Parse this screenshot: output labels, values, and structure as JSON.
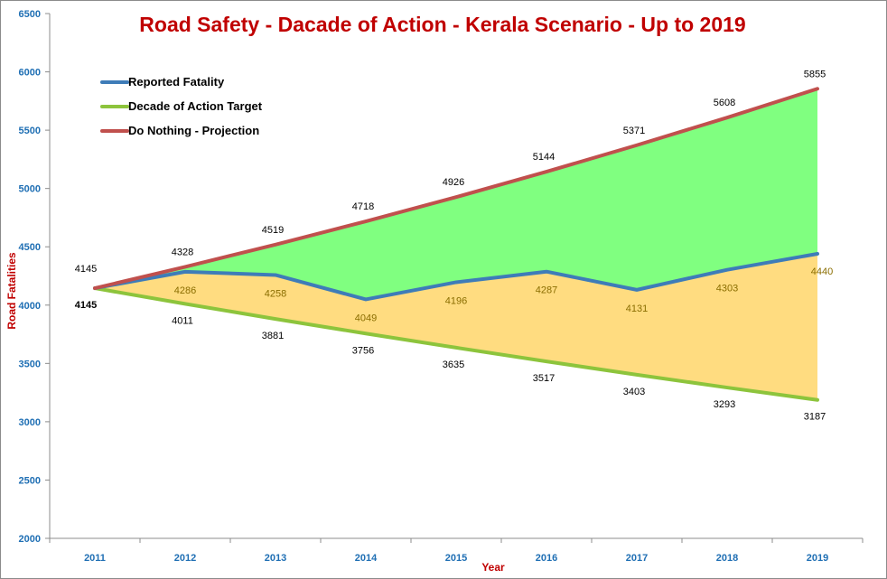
{
  "chart_data": {
    "type": "area",
    "title": "Road Safety - Dacade of Action - Kerala Scenario - Up to 2019",
    "xlabel": "Year",
    "ylabel": "Road  Fatalities",
    "ylim": [
      2000,
      6500
    ],
    "yticks": [
      2000,
      2500,
      3000,
      3500,
      4000,
      4500,
      5000,
      5500,
      6000,
      6500
    ],
    "categories": [
      "2011",
      "2012",
      "2013",
      "2014",
      "2015",
      "2016",
      "2017",
      "2018",
      "2019"
    ],
    "series": [
      {
        "name": "Reported Fatality",
        "color": "#3e7cb8",
        "values": [
          4145,
          4286,
          4258,
          4049,
          4196,
          4287,
          4131,
          4303,
          4440
        ]
      },
      {
        "name": "Decade of Action Target",
        "color": "#8dc43c",
        "values": [
          4145,
          4011,
          3881,
          3756,
          3635,
          3517,
          3403,
          3293,
          3187
        ]
      },
      {
        "name": "Do Nothing - Projection",
        "color": "#c0504d",
        "values": [
          4145,
          4328,
          4519,
          4718,
          4926,
          5144,
          5371,
          5608,
          5855
        ]
      }
    ],
    "fills": {
      "upper": "#80ff80",
      "lower": "#ffdc80"
    },
    "legend_position": "top-left",
    "grid": false
  }
}
